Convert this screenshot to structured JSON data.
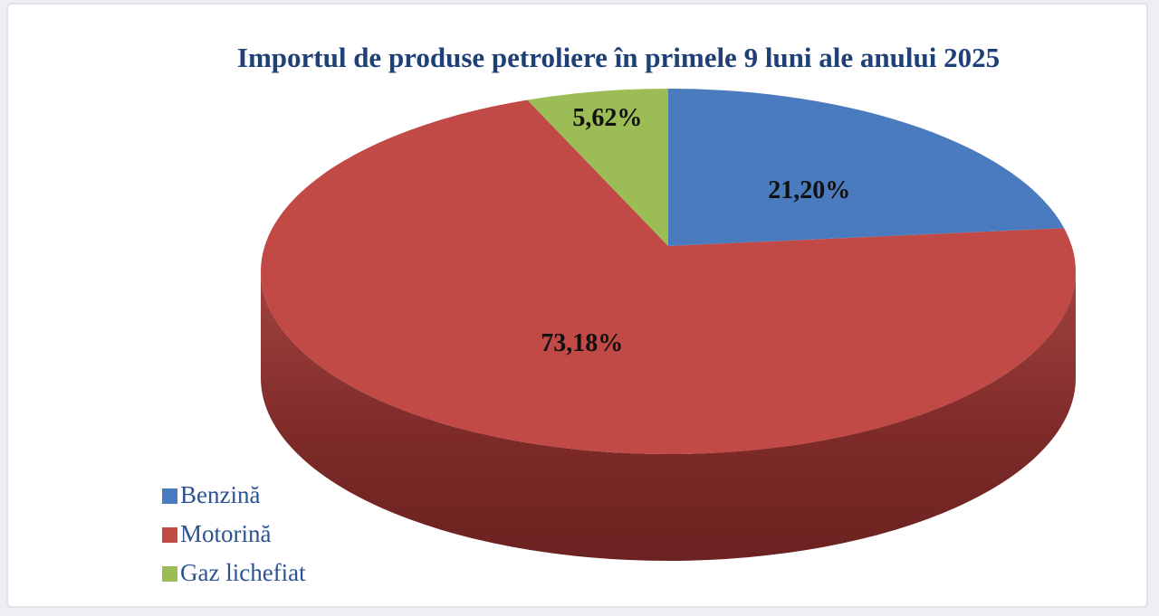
{
  "page": {
    "background_color": "#edeff2",
    "frame_border_color": "#dfe2e6",
    "frame_fill_color": "#ffffff"
  },
  "chart_data": {
    "type": "pie",
    "is_3d": true,
    "title": "Importul de produse petroliere în primele 9 luni ale anului 2025",
    "title_color": "#1e4077",
    "label_color": "#111111",
    "legend_text_color": "#2c5292",
    "legend_position": "bottom-left",
    "start_angle_deg": 0,
    "direction": "clockwise",
    "slices": [
      {
        "label": "Benzină",
        "value": 21.2,
        "label_text": "21,20%",
        "color": "#4a7bbe"
      },
      {
        "label": "Motorină",
        "value": 73.18,
        "label_text": "73,18%",
        "color": "#c14946"
      },
      {
        "label": "Gaz lichefiat",
        "value": 5.62,
        "label_text": "5,62%",
        "color": "#9cbd55"
      }
    ],
    "side_gradient": [
      "#a34340",
      "#7e2b29",
      "#6b2220"
    ]
  }
}
